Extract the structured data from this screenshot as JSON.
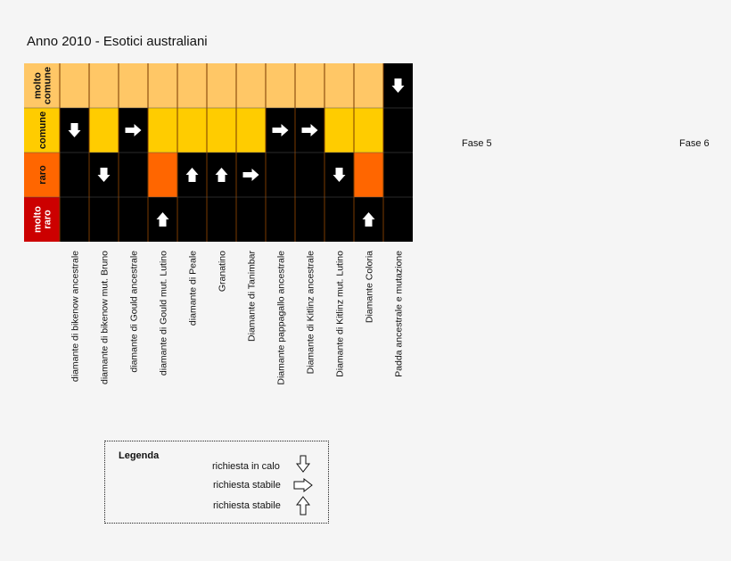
{
  "chart_data": {
    "type": "heatmap",
    "title": "Anno 2010 - Esotici australiani",
    "rows": [
      "molto comune",
      "comune",
      "raro",
      "molto raro"
    ],
    "row_colors": [
      "#ffc766",
      "#ffcc00",
      "#ff6600",
      "#cc0000"
    ],
    "categories": [
      "diamante di bikenow ancestrale",
      "diamante di bikenow mut. Bruno",
      "diamante di Gould ancestrale",
      "diamante di Gould mut. Lutino",
      "diamante di Peale",
      "Granatino",
      "Diamante di Tanimbar",
      "Diamante pappagallo ancestrale",
      "Diamante di Kitlinz ancestrale",
      "Diamante di Kitlinz mut. Lutino",
      "Diamante Coloria",
      "Padda ancestrale e mutazione"
    ],
    "values": [
      {
        "level": "comune",
        "trend": "down"
      },
      {
        "level": "raro",
        "trend": "down"
      },
      {
        "level": "comune",
        "trend": "right"
      },
      {
        "level": "molto raro",
        "trend": "up"
      },
      {
        "level": "raro",
        "trend": "up"
      },
      {
        "level": "raro",
        "trend": "up"
      },
      {
        "level": "raro",
        "trend": "right"
      },
      {
        "level": "comune",
        "trend": "right"
      },
      {
        "level": "comune",
        "trend": "right"
      },
      {
        "level": "raro",
        "trend": "down"
      },
      {
        "level": "molto raro",
        "trend": "up"
      },
      {
        "level": "molto comune",
        "trend": "down"
      }
    ],
    "fill_above": [
      null,
      null,
      null,
      "raro",
      null,
      null,
      null,
      null,
      null,
      null,
      "raro",
      null
    ]
  },
  "phases": [
    "Fase 5",
    "Fase 6"
  ],
  "legend": {
    "title": "Legenda",
    "items": [
      {
        "label": "richiesta in calo",
        "icon": "arrow-down-icon"
      },
      {
        "label": "richiesta stabile",
        "icon": "arrow-right-icon"
      },
      {
        "label": "richiesta stabile",
        "icon": "arrow-up-icon"
      }
    ]
  }
}
